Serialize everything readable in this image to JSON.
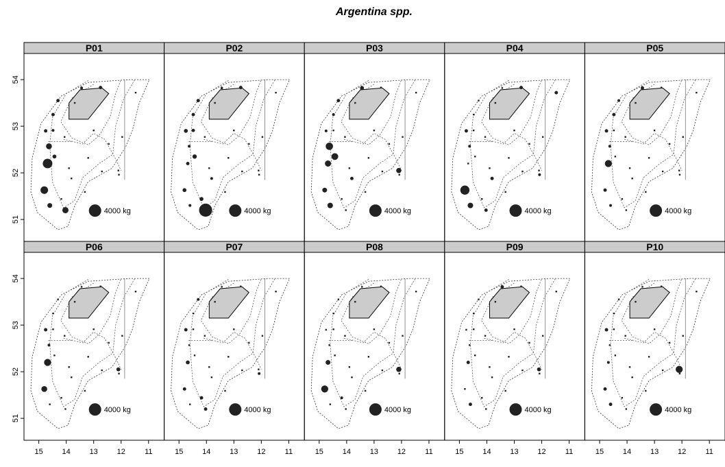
{
  "chart_data": {
    "type": "bubble-map",
    "title": "Argentina spp.",
    "xlim": [
      15.54,
      10.43
    ],
    "ylim": [
      50.53,
      54.56
    ],
    "xticks": [
      15,
      14,
      13,
      12,
      11
    ],
    "yticks": [
      51,
      52,
      53,
      54
    ],
    "legend": {
      "value": 4000,
      "label": "4000 kg"
    },
    "x": [
      14.68,
      14.8,
      14.63,
      14.03,
      14.48,
      13.44,
      12.75,
      14.43,
      14.48,
      13.69,
      14.06,
      13.2,
      12.45,
      11.96,
      13.81,
      13.32,
      12.7,
      12.08,
      14.18,
      13.0,
      11.47,
      14.6,
      14.3,
      13.9,
      12.1,
      14.75
    ],
    "y": [
      52.2,
      51.63,
      52.57,
      51.2,
      53.25,
      53.82,
      53.83,
      52.35,
      52.91,
      53.5,
      52.77,
      52.32,
      52.62,
      52.77,
      51.88,
      51.59,
      52.03,
      51.96,
      51.44,
      52.91,
      53.72,
      51.3,
      53.55,
      52.1,
      52.05,
      52.9
    ],
    "panels": [
      {
        "name": "P01",
        "values": [
          2400,
          1500,
          900,
          1000,
          300,
          200,
          300,
          400,
          200,
          0,
          0,
          0,
          0,
          0,
          0,
          0,
          0,
          0,
          0,
          0,
          0,
          600,
          300,
          0,
          0,
          300
        ]
      },
      {
        "name": "P02",
        "values": [
          300,
          400,
          200,
          4500,
          300,
          100,
          300,
          500,
          300,
          0,
          0,
          0,
          0,
          0,
          200,
          0,
          0,
          0,
          400,
          0,
          0,
          200,
          300,
          0,
          0,
          400
        ]
      },
      {
        "name": "P03",
        "values": [
          1000,
          600,
          1400,
          0,
          200,
          400,
          0,
          1200,
          0,
          0,
          0,
          0,
          0,
          0,
          300,
          0,
          0,
          0,
          0,
          0,
          0,
          800,
          300,
          0,
          700,
          200
        ]
      },
      {
        "name": "P04",
        "values": [
          0,
          2200,
          200,
          300,
          0,
          0,
          300,
          0,
          0,
          0,
          0,
          0,
          0,
          0,
          300,
          0,
          0,
          200,
          0,
          0,
          300,
          800,
          0,
          0,
          0,
          300
        ]
      },
      {
        "name": "P05",
        "values": [
          1300,
          300,
          200,
          0,
          300,
          300,
          0,
          0,
          0,
          0,
          0,
          0,
          0,
          0,
          0,
          0,
          0,
          0,
          0,
          0,
          0,
          200,
          200,
          0,
          0,
          300
        ]
      },
      {
        "name": "P06",
        "values": [
          1300,
          900,
          200,
          0,
          0,
          0,
          0,
          0,
          0,
          0,
          0,
          0,
          0,
          0,
          0,
          0,
          0,
          0,
          0,
          0,
          0,
          0,
          0,
          0,
          400,
          300
        ]
      },
      {
        "name": "P07",
        "values": [
          400,
          300,
          0,
          300,
          0,
          0,
          0,
          0,
          0,
          0,
          0,
          0,
          0,
          0,
          0,
          0,
          0,
          200,
          300,
          0,
          0,
          0,
          200,
          0,
          0,
          300
        ]
      },
      {
        "name": "P08",
        "values": [
          600,
          1300,
          0,
          0,
          0,
          0,
          0,
          0,
          0,
          0,
          0,
          0,
          0,
          0,
          0,
          0,
          0,
          0,
          200,
          0,
          0,
          0,
          0,
          0,
          700,
          0
        ]
      },
      {
        "name": "P09",
        "values": [
          300,
          0,
          0,
          0,
          0,
          300,
          0,
          0,
          0,
          0,
          0,
          0,
          0,
          0,
          0,
          0,
          0,
          0,
          0,
          0,
          0,
          300,
          0,
          0,
          400,
          0
        ]
      },
      {
        "name": "P10",
        "values": [
          200,
          300,
          0,
          0,
          0,
          0,
          0,
          0,
          0,
          0,
          0,
          0,
          0,
          0,
          0,
          0,
          0,
          0,
          0,
          0,
          0,
          300,
          0,
          0,
          1300,
          300
        ]
      }
    ]
  }
}
